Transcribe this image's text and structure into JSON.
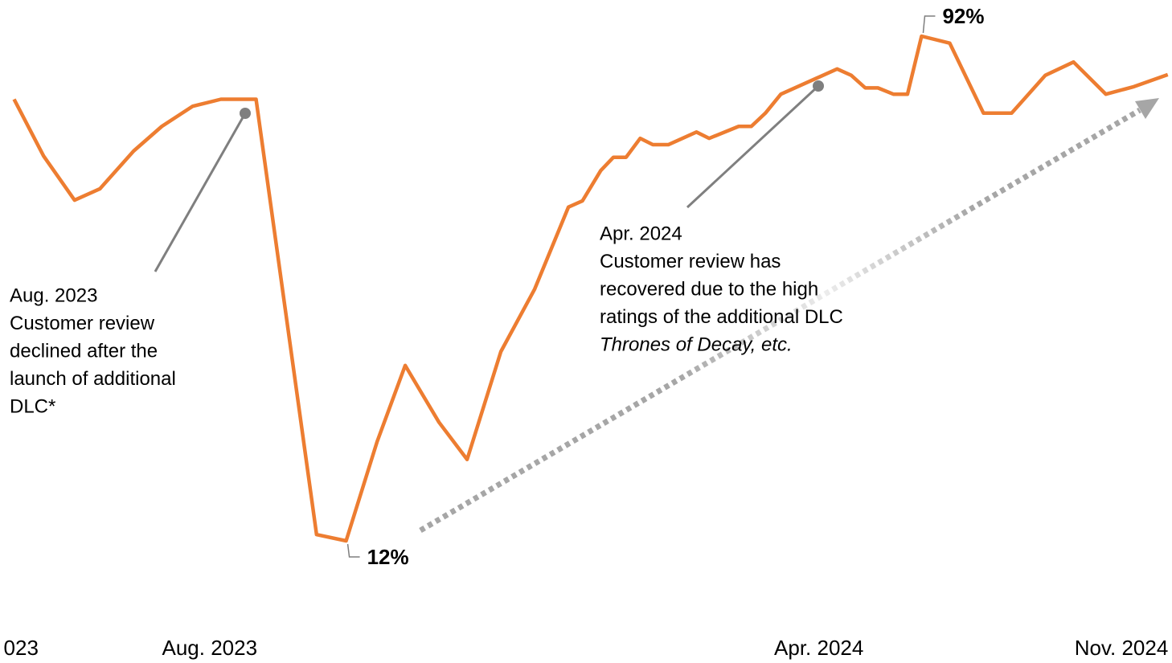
{
  "chart_data": {
    "type": "line",
    "x": [
      0,
      2.1,
      4.3,
      6.1,
      8.5,
      10.5,
      12.7,
      14.7,
      17.2,
      21.5,
      23.6,
      25.8,
      27.8,
      30.2,
      32.2,
      34.6,
      37,
      39.4,
      40.4,
      41.7,
      42.6,
      43.5,
      44.5,
      45.4,
      46.5,
      48.5,
      49.4,
      51.5,
      52.4,
      53.4,
      54.5,
      58.5,
      59.5,
      60.5,
      61.4,
      62.5,
      63.5,
      64.5,
      66.5,
      68.9,
      70.9,
      73.3,
      75.3,
      77.6,
      79.6,
      82
    ],
    "series": [
      {
        "name": "Customer review",
        "color": "#ed7d31",
        "values": [
          82,
          73,
          66,
          67.8,
          73.8,
          77.7,
          80.9,
          82,
          82,
          13,
          12,
          27.7,
          39.8,
          30.8,
          24.9,
          42,
          51.9,
          64.9,
          65.9,
          70.7,
          72.8,
          72.8,
          75.8,
          74.8,
          74.8,
          76.8,
          75.8,
          77.7,
          77.7,
          79.8,
          82.8,
          86.8,
          85.8,
          83.8,
          83.8,
          82.8,
          82.8,
          92,
          90.9,
          79.8,
          79.8,
          85.8,
          87.9,
          82.8,
          84,
          85.9
        ],
        "value_labels": [
          null,
          null,
          null,
          null,
          null,
          null,
          null,
          null,
          null,
          null,
          "12%",
          null,
          null,
          null,
          null,
          null,
          null,
          null,
          null,
          null,
          null,
          null,
          null,
          null,
          null,
          null,
          null,
          null,
          null,
          null,
          null,
          null,
          null,
          null,
          null,
          null,
          null,
          "92%",
          null,
          null,
          null,
          null,
          null,
          null,
          null,
          null
        ]
      }
    ],
    "xlim": [
      -1,
      82.3
    ],
    "xticks": [
      {
        "value": 0.5,
        "label": "023"
      },
      {
        "value": 13.9,
        "label": "Aug. 2023"
      },
      {
        "value": 57.2,
        "label": "Apr. 2024"
      },
      {
        "value": 78.7,
        "label": "Nov. 2024"
      }
    ],
    "ylim": [
      0,
      100
    ],
    "annotations": [
      {
        "lines": [
          "Aug. 2023",
          "Customer review",
          "declined after the",
          "launch of additional",
          "DLC*"
        ]
      },
      {
        "lines": [
          "Apr. 2024",
          "Customer review has",
          "recovered due to the high",
          "ratings of the additional DLC",
          "Thrones of Decay, etc."
        ]
      }
    ]
  }
}
